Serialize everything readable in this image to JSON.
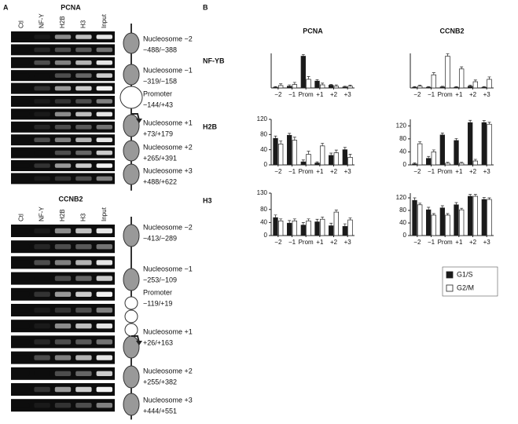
{
  "panels": {
    "a": "A",
    "b": "B"
  },
  "gels": [
    {
      "title": "PCNA",
      "lanes": [
        "Ctl",
        "NF-Y",
        "H2B",
        "H3",
        "Input"
      ],
      "nucleosomes": [
        {
          "name": "Nucleosome −2",
          "range": "−488/−388"
        },
        {
          "name": "Nucleosome −1",
          "range": "−319/−158"
        },
        {
          "name": "Promoter",
          "range": "−144/+43"
        },
        {
          "name": "Nucleosome +1",
          "range": "+73/+179"
        },
        {
          "name": "Nucleosome +2",
          "range": "+265/+391"
        },
        {
          "name": "Nucleosome +3",
          "range": "+488/+622"
        }
      ]
    },
    {
      "title": "CCNB2",
      "lanes": [
        "Ctl",
        "NF-Y",
        "H2B",
        "H3",
        "Input"
      ],
      "nucleosomes": [
        {
          "name": "Nucleosome −2",
          "range": "−413/−289"
        },
        {
          "name": "Nucleosome −1",
          "range": "−253/−109"
        },
        {
          "name": "Promoter",
          "range": "−119/+19"
        },
        {
          "name": "Nucleosome +1",
          "range": "+26/+163"
        },
        {
          "name": "Nucleosome +2",
          "range": "+255/+382"
        },
        {
          "name": "Nucleosome +3",
          "range": "+444/+551"
        }
      ]
    }
  ],
  "chart_data": [
    {
      "type": "bar",
      "title": "PCNA",
      "row_label": "NF-YB",
      "categories": [
        "−2",
        "−1",
        "Prom",
        "+1",
        "+2",
        "+3"
      ],
      "ylim": [
        0,
        100
      ],
      "series": [
        {
          "name": "G1/S",
          "color": "#1a1a1a",
          "values": [
            2,
            5,
            92,
            20,
            8,
            3
          ],
          "errors": [
            2,
            4,
            5,
            4,
            2,
            2
          ]
        },
        {
          "name": "G2/M",
          "color": "#ffffff",
          "values": [
            7,
            10,
            25,
            9,
            5,
            5
          ],
          "errors": [
            5,
            6,
            8,
            5,
            4,
            3
          ]
        }
      ]
    },
    {
      "type": "bar",
      "title": "CCNB2",
      "categories": [
        "−2",
        "−1",
        "Prom",
        "+1",
        "+2",
        "+3"
      ],
      "ylim": [
        0,
        100
      ],
      "series": [
        {
          "name": "G1/S",
          "color": "#1a1a1a",
          "values": [
            2,
            2,
            3,
            2,
            5,
            2
          ],
          "errors": [
            2,
            2,
            2,
            2,
            3,
            2
          ]
        },
        {
          "name": "G2/M",
          "color": "#ffffff",
          "values": [
            5,
            38,
            92,
            55,
            18,
            25
          ],
          "errors": [
            3,
            6,
            7,
            6,
            5,
            7
          ]
        }
      ]
    },
    {
      "type": "bar",
      "row_label": "H2B",
      "categories": [
        "−2",
        "−1",
        "Prom",
        "+1",
        "+2",
        "+3"
      ],
      "ylim": [
        0,
        120
      ],
      "yticks": [
        0,
        40,
        80,
        120
      ],
      "series": [
        {
          "name": "G1/S",
          "color": "#1a1a1a",
          "values": [
            70,
            78,
            8,
            5,
            25,
            40
          ],
          "errors": [
            6,
            5,
            5,
            3,
            6,
            6
          ]
        },
        {
          "name": "G2/M",
          "color": "#ffffff",
          "values": [
            55,
            65,
            28,
            50,
            32,
            20
          ],
          "errors": [
            8,
            8,
            8,
            7,
            7,
            8
          ]
        }
      ]
    },
    {
      "type": "bar",
      "categories": [
        "−2",
        "−1",
        "Prom",
        "+1",
        "+2",
        "+3"
      ],
      "ylim": [
        0,
        140
      ],
      "yticks": [
        0,
        40,
        80,
        120
      ],
      "series": [
        {
          "name": "G1/S",
          "color": "#1a1a1a",
          "values": [
            3,
            20,
            92,
            75,
            130,
            130
          ],
          "errors": [
            3,
            6,
            6,
            6,
            7,
            6
          ]
        },
        {
          "name": "G2/M",
          "color": "#ffffff",
          "values": [
            65,
            40,
            5,
            5,
            12,
            125
          ],
          "errors": [
            6,
            6,
            3,
            3,
            5,
            6
          ]
        }
      ]
    },
    {
      "type": "bar",
      "row_label": "H3",
      "categories": [
        "−2",
        "−1",
        "Prom",
        "+1",
        "+2",
        "+3"
      ],
      "ylim": [
        0,
        130
      ],
      "yticks": [
        0,
        40,
        80,
        130
      ],
      "series": [
        {
          "name": "G1/S",
          "color": "#1a1a1a",
          "values": [
            55,
            38,
            32,
            42,
            30,
            28
          ],
          "errors": [
            8,
            8,
            8,
            8,
            8,
            8
          ]
        },
        {
          "name": "G2/M",
          "color": "#ffffff",
          "values": [
            45,
            45,
            45,
            50,
            72,
            48
          ],
          "errors": [
            6,
            6,
            6,
            7,
            6,
            6
          ]
        }
      ]
    },
    {
      "type": "bar",
      "categories": [
        "−2",
        "−1",
        "Prom",
        "+1",
        "+2",
        "+3"
      ],
      "ylim": [
        0,
        135
      ],
      "yticks": [
        0,
        40,
        80,
        120
      ],
      "series": [
        {
          "name": "G1/S",
          "color": "#1a1a1a",
          "values": [
            112,
            82,
            88,
            98,
            125,
            115
          ],
          "errors": [
            8,
            8,
            7,
            7,
            6,
            6
          ]
        },
        {
          "name": "G2/M",
          "color": "#ffffff",
          "values": [
            98,
            65,
            65,
            82,
            125,
            115
          ],
          "errors": [
            5,
            5,
            5,
            5,
            6,
            5
          ]
        }
      ]
    }
  ]
}
